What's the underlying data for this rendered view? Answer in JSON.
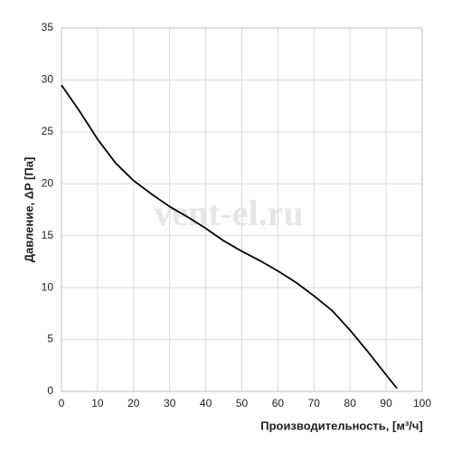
{
  "chart_data": {
    "type": "line",
    "x_label": "Производительность, [м³/ч]",
    "y_label": "Давление, ΔP [Па]",
    "watermark": "vent-el.ru",
    "xlim": [
      0,
      100
    ],
    "xticks": [
      0,
      10,
      20,
      30,
      40,
      50,
      60,
      70,
      80,
      90,
      100
    ],
    "ylim": [
      0,
      35
    ],
    "yticks": [
      0,
      5,
      10,
      15,
      20,
      25,
      30,
      35
    ],
    "grid": true,
    "series": [
      {
        "color": "#000000",
        "x": [
          0,
          5,
          10,
          15,
          20,
          25,
          30,
          35,
          40,
          45,
          50,
          55,
          60,
          65,
          70,
          75,
          80,
          85,
          90,
          93
        ],
        "values": [
          29.5,
          27,
          24.3,
          22,
          20.3,
          19,
          17.8,
          16.8,
          15.7,
          14.5,
          13.5,
          12.6,
          11.6,
          10.5,
          9.2,
          7.8,
          5.9,
          3.8,
          1.6,
          0.3
        ]
      }
    ]
  }
}
